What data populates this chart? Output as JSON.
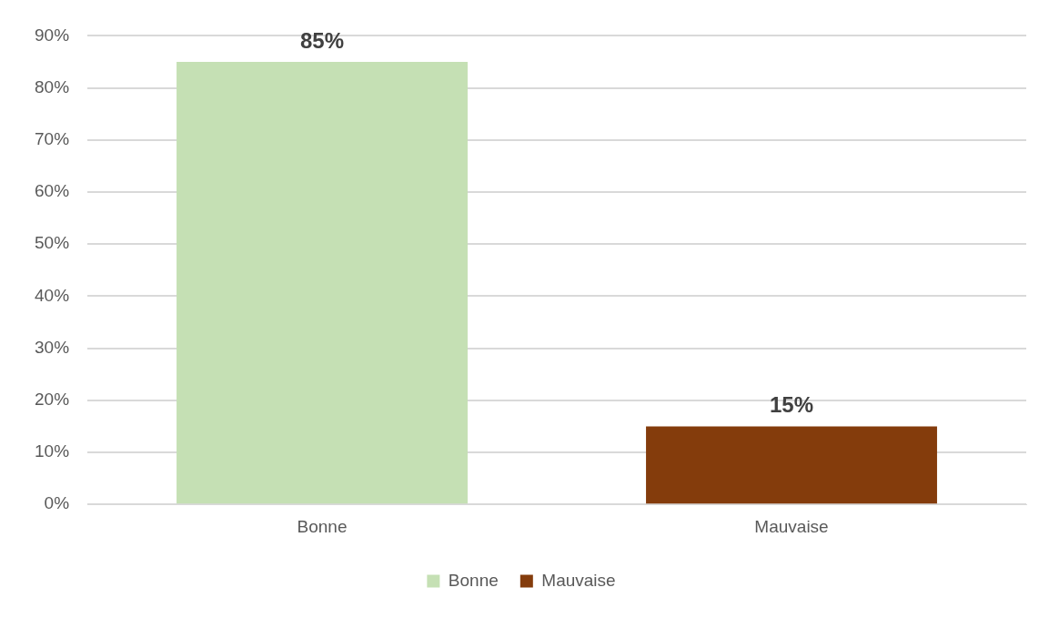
{
  "chart_data": {
    "type": "bar",
    "categories": [
      "Bonne",
      "Mauvaise"
    ],
    "series": [
      {
        "name": "Bonne",
        "color": "#c5e0b4",
        "values": [
          85,
          null
        ],
        "value_labels": [
          "85%",
          null
        ]
      },
      {
        "name": "Mauvaise",
        "color": "#843c0c",
        "values": [
          null,
          15
        ],
        "value_labels": [
          null,
          "15%"
        ]
      }
    ],
    "ylim": [
      0,
      90
    ],
    "yticks": [
      {
        "value": 0,
        "label": "0%"
      },
      {
        "value": 10,
        "label": "10%"
      },
      {
        "value": 20,
        "label": "20%"
      },
      {
        "value": 30,
        "label": "30%"
      },
      {
        "value": 40,
        "label": "40%"
      },
      {
        "value": 50,
        "label": "50%"
      },
      {
        "value": 60,
        "label": "60%"
      },
      {
        "value": 70,
        "label": "70%"
      },
      {
        "value": 80,
        "label": "80%"
      },
      {
        "value": 90,
        "label": "90%"
      }
    ],
    "grid": "y",
    "legend": "bottom"
  }
}
